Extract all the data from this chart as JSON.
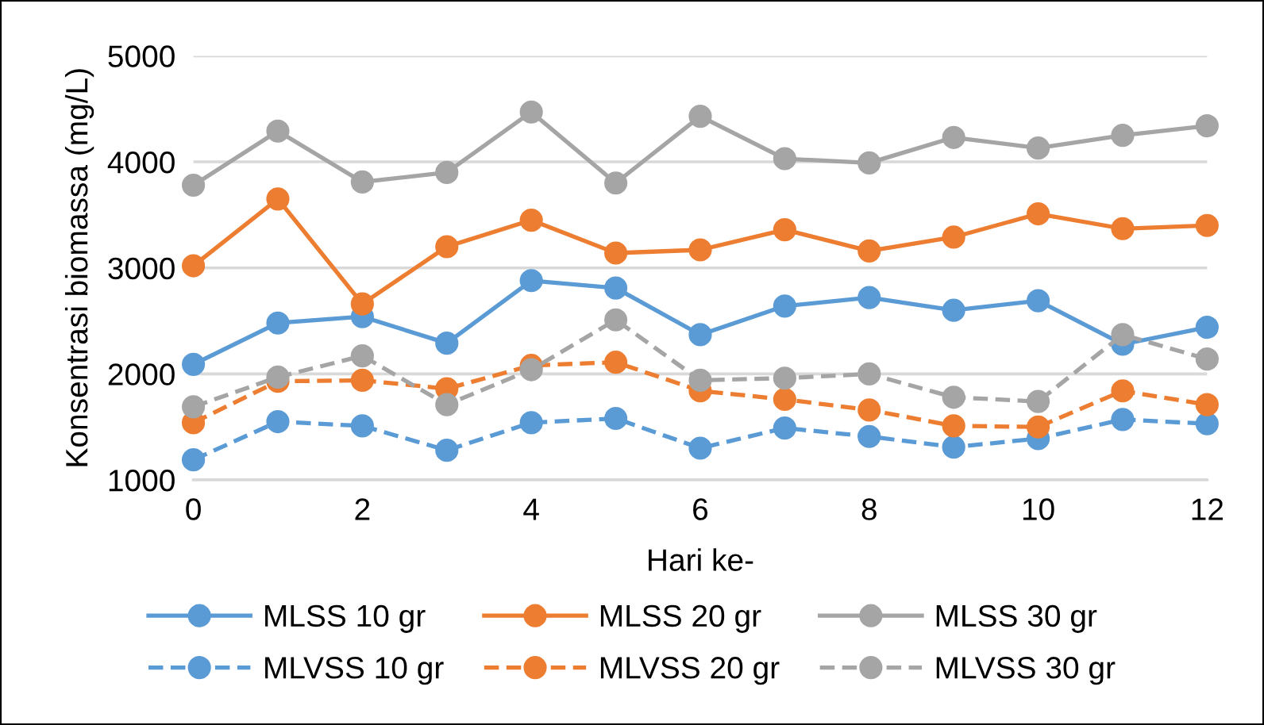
{
  "chart_data": {
    "type": "line",
    "xlabel": "Hari ke-",
    "ylabel": "Konsentrasi biomassa (mg/L)",
    "x": [
      0,
      1,
      2,
      3,
      4,
      5,
      6,
      7,
      8,
      9,
      10,
      11,
      12
    ],
    "xlim": [
      0,
      12
    ],
    "xticks": [
      0,
      2,
      4,
      6,
      8,
      10,
      12
    ],
    "ylim": [
      1000,
      5000
    ],
    "yticks": [
      1000,
      2000,
      3000,
      4000,
      5000
    ],
    "grid": "y",
    "legend": "bottom",
    "marker": "circle",
    "series": [
      {
        "name": "MLSS 10 gr",
        "color": "#5b9bd5",
        "line_style": "solid",
        "values": [
          2090,
          2480,
          2540,
          2290,
          2880,
          2810,
          2370,
          2640,
          2720,
          2600,
          2690,
          2280,
          2440
        ]
      },
      {
        "name": "MLSS 20 gr",
        "color": "#ed7d31",
        "line_style": "solid",
        "values": [
          3020,
          3650,
          2660,
          3200,
          3450,
          3140,
          3170,
          3360,
          3160,
          3290,
          3510,
          3370,
          3400
        ]
      },
      {
        "name": "MLSS 30 gr",
        "color": "#a5a5a5",
        "line_style": "solid",
        "values": [
          3780,
          4290,
          3810,
          3900,
          4470,
          3800,
          4430,
          4030,
          3990,
          4230,
          4130,
          4250,
          4340
        ]
      },
      {
        "name": "MLVSS 10 gr",
        "color": "#5b9bd5",
        "line_style": "dashed",
        "values": [
          1190,
          1550,
          1510,
          1280,
          1540,
          1580,
          1300,
          1490,
          1410,
          1310,
          1390,
          1570,
          1530
        ]
      },
      {
        "name": "MLVSS 20 gr",
        "color": "#ed7d31",
        "line_style": "dashed",
        "values": [
          1540,
          1930,
          1940,
          1860,
          2080,
          2110,
          1840,
          1760,
          1660,
          1510,
          1500,
          1840,
          1710
        ]
      },
      {
        "name": "MLVSS 30 gr",
        "color": "#a5a5a5",
        "line_style": "dashed",
        "values": [
          1690,
          1970,
          2170,
          1710,
          2040,
          2510,
          1940,
          1960,
          2000,
          1780,
          1740,
          2370,
          2140
        ]
      }
    ]
  }
}
